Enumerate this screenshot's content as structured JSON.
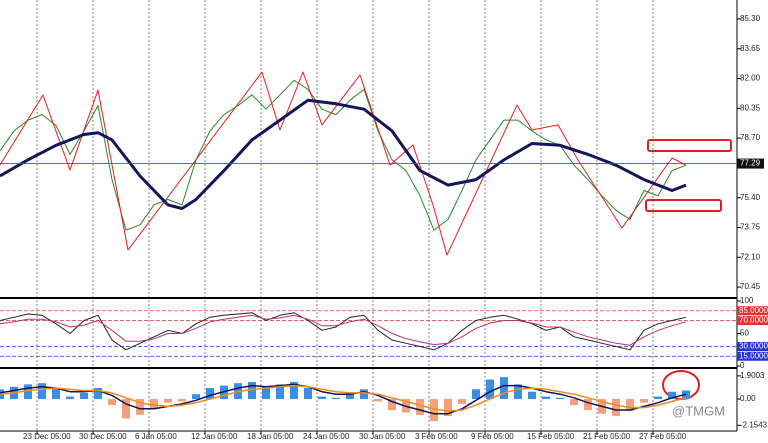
{
  "chart_data": [
    {
      "type": "line",
      "xlim": [
        0,
        737
      ],
      "ylim": [
        69.9,
        86.35
      ],
      "xticks": [
        {
          "value": 37,
          "label": "23 Dec 05:00"
        },
        {
          "value": 93,
          "label": "30 Dec 05:00"
        },
        {
          "value": 149,
          "label": "6 Jan 05:00"
        },
        {
          "value": 205,
          "label": "12 Jan 05:00"
        },
        {
          "value": 261,
          "label": "18 Jan 05:00"
        },
        {
          "value": 317,
          "label": "24 Jan 05:00"
        },
        {
          "value": 373,
          "label": "30 Jan 05:00"
        },
        {
          "value": 429,
          "label": "3 Feb 05:00"
        },
        {
          "value": 485,
          "label": "9 Feb 05:00"
        },
        {
          "value": 541,
          "label": "15 Feb 05:00"
        },
        {
          "value": 597,
          "label": "21 Feb 05:00"
        },
        {
          "value": 653,
          "label": "27 Feb 05:00"
        }
      ],
      "yticks": [
        {
          "value": 85.3,
          "label": "85.30"
        },
        83.65,
        {
          "value": 82.0,
          "label": "82.00"
        },
        80.35,
        {
          "value": 78.7,
          "label": "78.70"
        },
        {
          "value": 75.4,
          "label": "75.40"
        },
        73.75,
        {
          "value": 72.1,
          "label": "72.10"
        },
        70.45
      ],
      "last_price": 77.29,
      "last_price_color": "#3355dd",
      "series": [
        {
          "color": "#2a8a2a",
          "width": 1,
          "x": [
            0,
            14,
            28,
            42,
            56,
            70,
            84,
            98,
            112,
            126,
            140,
            154,
            168,
            182,
            196,
            210,
            224,
            238,
            252,
            266,
            280,
            294,
            308,
            322,
            336,
            350,
            364,
            378,
            392,
            406,
            420,
            434,
            448,
            462,
            476,
            490,
            504,
            518,
            532,
            546,
            560,
            574,
            588,
            602,
            616,
            630,
            644,
            658,
            672,
            686
          ],
          "values": [
            78.0,
            79.1,
            79.7,
            80.0,
            79.4,
            77.8,
            79.1,
            80.5,
            76.4,
            73.6,
            73.9,
            75.0,
            75.3,
            75.0,
            77.5,
            79.1,
            80.0,
            80.5,
            81.1,
            80.3,
            81.1,
            81.9,
            81.4,
            80.3,
            80.0,
            80.8,
            81.4,
            79.1,
            77.5,
            76.9,
            75.5,
            73.6,
            74.2,
            75.8,
            77.5,
            78.6,
            79.7,
            79.7,
            79.1,
            78.6,
            78.3,
            77.2,
            76.4,
            75.5,
            74.7,
            74.2,
            75.8,
            75.5,
            76.9,
            77.2
          ]
        },
        {
          "color": "#e02020",
          "width": 1,
          "x": [
            0,
            43,
            70,
            98,
            128,
            262,
            280,
            303,
            322,
            360,
            390,
            413,
            433,
            447,
            517,
            532,
            558,
            578,
            622,
            672,
            686
          ],
          "values": [
            77.21,
            81.09,
            76.93,
            81.36,
            72.5,
            82.36,
            79.15,
            82.36,
            79.43,
            82.2,
            77.21,
            78.32,
            75.0,
            72.22,
            80.53,
            79.15,
            79.43,
            77.49,
            73.72,
            77.6,
            77.21
          ]
        },
        {
          "color": "#14145a",
          "width": 3,
          "x": [
            0,
            28,
            56,
            84,
            98,
            112,
            140,
            168,
            182,
            196,
            224,
            252,
            280,
            308,
            336,
            364,
            392,
            420,
            448,
            476,
            504,
            532,
            560,
            588,
            616,
            644,
            672,
            686
          ],
          "values": [
            76.6,
            77.5,
            78.3,
            78.9,
            79.0,
            78.6,
            76.6,
            75.0,
            74.8,
            75.3,
            76.9,
            78.6,
            79.7,
            80.8,
            80.6,
            80.3,
            79.1,
            76.9,
            76.1,
            76.4,
            77.5,
            78.4,
            78.3,
            77.8,
            77.2,
            76.4,
            75.8,
            76.1
          ]
        }
      ]
    },
    {
      "type": "line",
      "xlim": [
        0,
        737
      ],
      "ylim": [
        0,
        100
      ],
      "yticks": [
        0,
        50,
        100
      ],
      "levels": [
        {
          "value": 85,
          "label": "85.0000",
          "color": "#e03030"
        },
        {
          "value": 70,
          "label": "70.0000",
          "color": "#e03030"
        },
        {
          "value": 30,
          "label": "30.0000",
          "color": "#2233dd"
        },
        {
          "value": 15,
          "label": "15.0000",
          "color": "#2233dd"
        }
      ],
      "series": [
        {
          "color": "#222222",
          "width": 1,
          "x": [
            0,
            14,
            28,
            42,
            56,
            70,
            84,
            98,
            112,
            126,
            140,
            154,
            168,
            182,
            196,
            210,
            224,
            238,
            252,
            266,
            280,
            294,
            308,
            322,
            336,
            350,
            364,
            378,
            392,
            406,
            420,
            434,
            448,
            462,
            476,
            490,
            504,
            518,
            532,
            546,
            560,
            574,
            588,
            602,
            616,
            630,
            644,
            658,
            672,
            686
          ],
          "values": [
            70,
            75,
            80,
            78,
            65,
            50,
            70,
            78,
            40,
            25,
            35,
            45,
            55,
            50,
            65,
            75,
            78,
            80,
            82,
            70,
            78,
            82,
            70,
            55,
            60,
            75,
            78,
            55,
            40,
            35,
            30,
            25,
            35,
            55,
            70,
            75,
            78,
            72,
            65,
            55,
            60,
            45,
            40,
            35,
            30,
            25,
            55,
            65,
            70,
            75
          ]
        },
        {
          "color": "#c03070",
          "width": 1,
          "x": [
            0,
            14,
            28,
            42,
            56,
            70,
            84,
            98,
            112,
            126,
            140,
            154,
            168,
            182,
            196,
            210,
            224,
            238,
            252,
            266,
            280,
            294,
            308,
            322,
            336,
            350,
            364,
            378,
            392,
            406,
            420,
            434,
            448,
            462,
            476,
            490,
            504,
            518,
            532,
            546,
            560,
            574,
            588,
            602,
            616,
            630,
            644,
            658,
            672,
            686
          ],
          "values": [
            65,
            68,
            72,
            72,
            68,
            60,
            63,
            70,
            55,
            38,
            38,
            42,
            50,
            50,
            58,
            68,
            72,
            75,
            78,
            72,
            74,
            78,
            72,
            62,
            62,
            68,
            72,
            62,
            50,
            42,
            37,
            33,
            35,
            45,
            58,
            66,
            70,
            70,
            66,
            60,
            60,
            52,
            45,
            40,
            35,
            32,
            45,
            55,
            62,
            68
          ]
        }
      ]
    },
    {
      "type": "bar",
      "xlim": [
        0,
        737
      ],
      "ylim": [
        -2.54,
        2.3
      ],
      "yticks": [
        1.9003,
        {
          "value": 0,
          "label": "0.00"
        },
        -2.1543
      ],
      "positive_color": "#3a8ee6",
      "negative_color": "#f4a07a",
      "x": [
        0,
        14,
        28,
        42,
        56,
        70,
        84,
        98,
        112,
        126,
        140,
        154,
        168,
        182,
        196,
        210,
        224,
        238,
        252,
        266,
        280,
        294,
        308,
        322,
        336,
        350,
        364,
        378,
        392,
        406,
        420,
        434,
        448,
        462,
        476,
        490,
        504,
        518,
        532,
        546,
        560,
        574,
        588,
        602,
        616,
        630,
        644,
        658,
        672,
        686
      ],
      "values": [
        0.8,
        1.0,
        1.2,
        1.3,
        0.9,
        0.2,
        0.5,
        0.9,
        -0.5,
        -1.6,
        -1.3,
        -0.8,
        -0.3,
        -0.2,
        0.4,
        0.9,
        1.1,
        1.3,
        1.4,
        1.0,
        1.2,
        1.4,
        0.9,
        0.2,
        0.1,
        0.5,
        0.8,
        -0.2,
        -0.9,
        -1.1,
        -1.3,
        -1.8,
        -1.4,
        -0.4,
        0.8,
        1.6,
        1.8,
        1.2,
        0.6,
        0.2,
        0.1,
        -0.5,
        -0.9,
        -1.2,
        -1.4,
        -1.0,
        -0.3,
        0.2,
        0.6,
        0.7
      ],
      "series": [
        {
          "color": "#14145a",
          "width": 1.5,
          "x": [
            0,
            14,
            28,
            42,
            56,
            70,
            84,
            98,
            112,
            126,
            140,
            154,
            168,
            182,
            196,
            210,
            224,
            238,
            252,
            266,
            280,
            294,
            308,
            322,
            336,
            350,
            364,
            378,
            392,
            406,
            420,
            434,
            448,
            462,
            476,
            490,
            504,
            518,
            532,
            546,
            560,
            574,
            588,
            602,
            616,
            630,
            644,
            658,
            672,
            686
          ],
          "values": [
            0.5,
            0.7,
            0.9,
            1.0,
            0.9,
            0.6,
            0.6,
            0.7,
            0.3,
            -0.4,
            -0.8,
            -0.8,
            -0.6,
            -0.4,
            -0.1,
            0.3,
            0.6,
            0.9,
            1.1,
            1.0,
            1.1,
            1.2,
            1.0,
            0.6,
            0.4,
            0.4,
            0.6,
            0.3,
            -0.2,
            -0.6,
            -0.9,
            -1.2,
            -1.2,
            -0.8,
            -0.1,
            0.6,
            1.1,
            1.1,
            0.9,
            0.6,
            0.4,
            0.1,
            -0.3,
            -0.6,
            -0.9,
            -0.9,
            -0.6,
            -0.3,
            0.1,
            0.4
          ]
        },
        {
          "color": "#f08c1e",
          "width": 1.5,
          "x": [
            0,
            14,
            28,
            42,
            56,
            70,
            84,
            98,
            112,
            126,
            140,
            154,
            168,
            182,
            196,
            210,
            224,
            238,
            252,
            266,
            280,
            294,
            308,
            322,
            336,
            350,
            364,
            378,
            392,
            406,
            420,
            434,
            448,
            462,
            476,
            490,
            504,
            518,
            532,
            546,
            560,
            574,
            588,
            602,
            616,
            630,
            644,
            658,
            672,
            686
          ],
          "values": [
            0.4,
            0.5,
            0.7,
            0.8,
            0.9,
            0.8,
            0.7,
            0.7,
            0.5,
            0.1,
            -0.3,
            -0.5,
            -0.6,
            -0.5,
            -0.3,
            0.0,
            0.3,
            0.6,
            0.8,
            0.9,
            1.0,
            1.1,
            1.0,
            0.8,
            0.6,
            0.5,
            0.5,
            0.4,
            0.1,
            -0.2,
            -0.5,
            -0.8,
            -1.0,
            -0.9,
            -0.5,
            0.0,
            0.5,
            0.8,
            0.9,
            0.8,
            0.6,
            0.4,
            0.1,
            -0.2,
            -0.5,
            -0.7,
            -0.7,
            -0.5,
            -0.2,
            0.1
          ]
        }
      ]
    }
  ],
  "watermark": "@TMGM"
}
